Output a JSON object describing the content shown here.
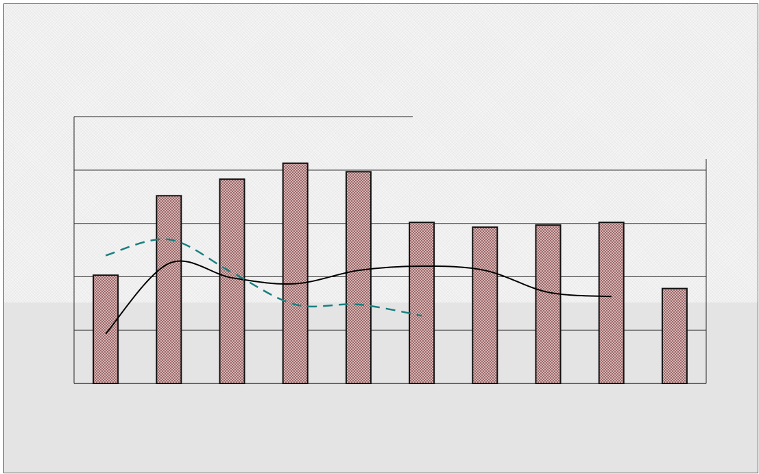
{
  "chart_data": {
    "type": "bar",
    "categories": [
      "",
      "",
      "",
      "",
      "",
      "",
      "",
      "",
      "",
      ""
    ],
    "ylim": [
      0,
      5
    ],
    "grid": true,
    "legend": "none",
    "title": "",
    "xlabel": "",
    "ylabel": "",
    "series": [
      {
        "type": "bar",
        "values": [
          2.03,
          3.52,
          3.83,
          4.13,
          3.97,
          3.02,
          2.93,
          2.97,
          3.02,
          1.78
        ]
      },
      {
        "type": "line",
        "style": "solid",
        "x": [
          0,
          1,
          2,
          3,
          4,
          5,
          6,
          7,
          8
        ],
        "values": [
          0.93,
          2.25,
          1.98,
          1.87,
          2.12,
          2.2,
          2.12,
          1.71,
          1.63
        ]
      },
      {
        "type": "line",
        "style": "dashed",
        "x": [
          0,
          1,
          2,
          3,
          4,
          5
        ],
        "values": [
          2.4,
          2.7,
          2.08,
          1.48,
          1.48,
          1.27
        ]
      }
    ],
    "colors": {
      "bar_fill": "#c8a0a0",
      "bar_stroke": "#111111",
      "solid_line": "#000000",
      "dashed_line": "#1a7f7f",
      "grid": "#333333"
    }
  }
}
